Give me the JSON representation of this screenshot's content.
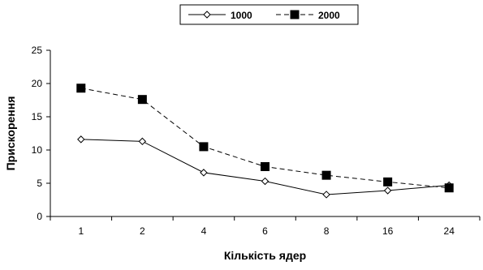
{
  "chart_data": {
    "type": "line",
    "title": "",
    "xlabel": "Кількість ядер",
    "ylabel": "Прискорення",
    "categories": [
      "1",
      "2",
      "4",
      "6",
      "8",
      "16",
      "24"
    ],
    "ylim": [
      0,
      25
    ],
    "yticks": [
      0,
      5,
      10,
      15,
      20,
      25
    ],
    "grid": false,
    "legend_position": "top-center",
    "series": [
      {
        "name": "1000",
        "values": [
          11.6,
          11.3,
          6.6,
          5.3,
          3.3,
          3.9,
          4.7
        ],
        "color": "#000000",
        "line_style": "solid",
        "marker": "open-diamond"
      },
      {
        "name": "2000",
        "values": [
          19.3,
          17.6,
          10.5,
          7.5,
          6.2,
          5.2,
          4.3
        ],
        "color": "#000000",
        "line_style": "dashed",
        "marker": "filled-square"
      }
    ]
  }
}
